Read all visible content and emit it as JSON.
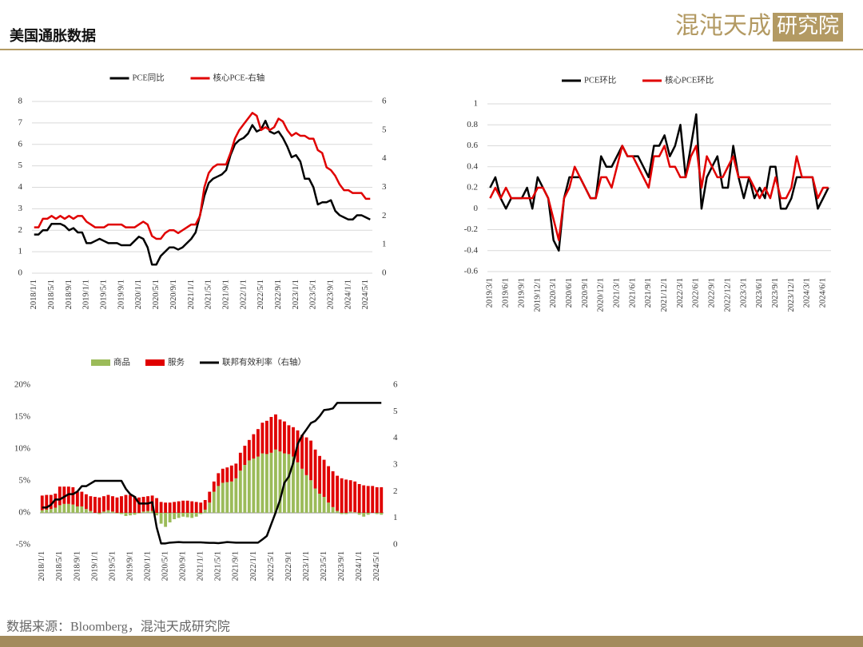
{
  "header": {
    "title": "美国通胀数据",
    "logo": "混沌天成",
    "logo_box": "研究院"
  },
  "footer": {
    "source": "数据来源：Bloomberg，混沌天成研究院"
  },
  "chart_data": [
    {
      "type": "line",
      "grid": true,
      "categories": [
        "2018/1/1",
        null,
        null,
        null,
        "2018/5/1",
        null,
        null,
        null,
        "2018/9/1",
        null,
        null,
        null,
        "2019/1/1",
        null,
        null,
        null,
        "2019/5/1",
        null,
        null,
        null,
        "2019/9/1",
        null,
        null,
        null,
        "2020/1/1",
        null,
        null,
        null,
        "2020/5/1",
        null,
        null,
        null,
        "2020/9/1",
        null,
        null,
        null,
        "2021/1/1",
        null,
        null,
        null,
        "2021/5/1",
        null,
        null,
        null,
        "2021/9/1",
        null,
        null,
        null,
        "2022/1/1",
        null,
        null,
        null,
        "2022/5/1",
        null,
        null,
        null,
        "2022/9/1",
        null,
        null,
        null,
        "2023/1/1",
        null,
        null,
        null,
        "2023/5/1",
        null,
        null,
        null,
        "2023/9/1",
        null,
        null,
        null,
        "2024/1/1",
        null,
        null,
        null,
        "2024/5/1",
        null
      ],
      "ylim": [
        0,
        8
      ],
      "yticks": [
        0,
        1,
        2,
        3,
        4,
        5,
        6,
        7,
        8
      ],
      "y2lim": [
        0,
        6
      ],
      "y2ticks": [
        0,
        1,
        2,
        3,
        4,
        5,
        6
      ],
      "series": [
        {
          "name": "PCE同比",
          "color": "#000000",
          "values": [
            1.8,
            1.8,
            2.0,
            2.0,
            2.3,
            2.3,
            2.3,
            2.2,
            2.0,
            2.1,
            1.9,
            1.9,
            1.4,
            1.4,
            1.5,
            1.6,
            1.5,
            1.4,
            1.4,
            1.4,
            1.3,
            1.3,
            1.3,
            1.5,
            1.7,
            1.6,
            1.2,
            0.4,
            0.4,
            0.8,
            1.0,
            1.2,
            1.2,
            1.1,
            1.2,
            1.4,
            1.6,
            1.9,
            2.7,
            3.6,
            4.2,
            4.4,
            4.5,
            4.6,
            4.8,
            5.5,
            6.0,
            6.2,
            6.3,
            6.5,
            6.9,
            6.6,
            6.7,
            7.1,
            6.6,
            6.5,
            6.6,
            6.3,
            5.9,
            5.4,
            5.5,
            5.2,
            4.4,
            4.4,
            4.0,
            3.2,
            3.3,
            3.3,
            3.4,
            2.9,
            2.7,
            2.6,
            2.5,
            2.5,
            2.7,
            2.7,
            2.6,
            2.5
          ]
        },
        {
          "name": "核心PCE-右轴",
          "color": "#e00000",
          "axis": "y2",
          "values": [
            1.6,
            1.6,
            1.9,
            1.9,
            2.0,
            1.9,
            2.0,
            1.9,
            2.0,
            1.9,
            2.0,
            2.0,
            1.8,
            1.7,
            1.6,
            1.6,
            1.6,
            1.7,
            1.7,
            1.7,
            1.7,
            1.6,
            1.6,
            1.6,
            1.7,
            1.8,
            1.7,
            1.3,
            1.2,
            1.2,
            1.4,
            1.5,
            1.5,
            1.4,
            1.5,
            1.6,
            1.7,
            1.7,
            2.0,
            3.0,
            3.5,
            3.7,
            3.8,
            3.8,
            3.8,
            4.2,
            4.7,
            5.0,
            5.2,
            5.4,
            5.6,
            5.5,
            5.0,
            5.1,
            5.0,
            5.1,
            5.4,
            5.3,
            5.0,
            4.8,
            4.9,
            4.8,
            4.8,
            4.7,
            4.7,
            4.3,
            4.2,
            3.7,
            3.6,
            3.4,
            3.1,
            2.9,
            2.9,
            2.8,
            2.8,
            2.8,
            2.6,
            2.6
          ]
        }
      ]
    },
    {
      "type": "line",
      "grid": true,
      "categories": [
        "2019/3/1",
        null,
        null,
        "2019/6/1",
        null,
        null,
        "2019/9/1",
        null,
        null,
        "2019/12/1",
        null,
        null,
        "2020/3/1",
        null,
        null,
        "2020/6/1",
        null,
        null,
        "2020/9/1",
        null,
        null,
        "2020/12/1",
        null,
        null,
        "2021/3/1",
        null,
        null,
        "2021/6/1",
        null,
        null,
        "2021/9/1",
        null,
        null,
        "2021/12/1",
        null,
        null,
        "2022/3/1",
        null,
        null,
        "2022/6/1",
        null,
        null,
        "2022/9/1",
        null,
        null,
        "2022/12/1",
        null,
        null,
        "2023/3/1",
        null,
        null,
        "2023/6/1",
        null,
        null,
        "2023/9/1",
        null,
        null,
        "2023/12/1",
        null,
        null,
        "2024/3/1",
        null,
        null,
        "2024/6/1",
        null
      ],
      "ylim": [
        -0.6,
        1
      ],
      "yticks": [
        -0.6,
        -0.4,
        -0.2,
        0,
        0.2,
        0.4,
        0.6,
        0.8,
        1
      ],
      "series": [
        {
          "name": "PCE环比",
          "color": "#000000",
          "values": [
            0.2,
            0.3,
            0.1,
            0.0,
            0.1,
            0.1,
            0.1,
            0.2,
            0.0,
            0.3,
            0.2,
            0.1,
            -0.3,
            -0.4,
            0.1,
            0.3,
            0.3,
            0.3,
            0.2,
            0.1,
            0.1,
            0.5,
            0.4,
            0.4,
            0.5,
            0.6,
            0.5,
            0.5,
            0.5,
            0.4,
            0.3,
            0.6,
            0.6,
            0.7,
            0.5,
            0.6,
            0.8,
            0.3,
            0.6,
            0.9,
            0.0,
            0.3,
            0.4,
            0.5,
            0.2,
            0.2,
            0.6,
            0.3,
            0.1,
            0.3,
            0.1,
            0.2,
            0.1,
            0.4,
            0.4,
            0.0,
            0.0,
            0.1,
            0.3,
            0.3,
            0.3,
            0.3,
            0.0,
            0.1,
            0.2
          ]
        },
        {
          "name": "核心PCE环比",
          "color": "#e00000",
          "values": [
            0.1,
            0.2,
            0.1,
            0.2,
            0.1,
            0.1,
            0.1,
            0.1,
            0.1,
            0.2,
            0.2,
            0.1,
            -0.1,
            -0.3,
            0.1,
            0.2,
            0.4,
            0.3,
            0.2,
            0.1,
            0.1,
            0.3,
            0.3,
            0.2,
            0.4,
            0.6,
            0.5,
            0.5,
            0.4,
            0.3,
            0.2,
            0.5,
            0.5,
            0.6,
            0.4,
            0.4,
            0.3,
            0.3,
            0.5,
            0.6,
            0.2,
            0.5,
            0.4,
            0.3,
            0.3,
            0.4,
            0.5,
            0.3,
            0.3,
            0.3,
            0.2,
            0.1,
            0.2,
            0.1,
            0.3,
            0.1,
            0.1,
            0.2,
            0.5,
            0.3,
            0.3,
            0.3,
            0.1,
            0.2,
            0.2
          ]
        }
      ]
    },
    {
      "type": "bar",
      "grid": false,
      "categories": [
        "2018/1/1",
        null,
        null,
        null,
        "2018/5/1",
        null,
        null,
        null,
        "2018/9/1",
        null,
        null,
        null,
        "2019/1/1",
        null,
        null,
        null,
        "2019/5/1",
        null,
        null,
        null,
        "2019/9/1",
        null,
        null,
        null,
        "2020/1/1",
        null,
        null,
        null,
        "2020/5/1",
        null,
        null,
        null,
        "2020/9/1",
        null,
        null,
        null,
        "2021/1/1",
        null,
        null,
        null,
        "2021/5/1",
        null,
        null,
        null,
        "2021/9/1",
        null,
        null,
        null,
        "2022/1/1",
        null,
        null,
        null,
        "2022/5/1",
        null,
        null,
        null,
        "2022/9/1",
        null,
        null,
        null,
        "2023/1/1",
        null,
        null,
        null,
        "2023/5/1",
        null,
        null,
        null,
        "2023/9/1",
        null,
        null,
        null,
        "2024/1/1",
        null,
        null,
        null,
        "2024/5/1",
        null
      ],
      "ylim": [
        -5,
        20
      ],
      "yticks": [
        {
          "value": -5,
          "label": "-5%"
        },
        {
          "value": 0,
          "label": "0%"
        },
        {
          "value": 5,
          "label": "5%"
        },
        {
          "value": 10,
          "label": "10%"
        },
        {
          "value": 15,
          "label": "15%"
        },
        {
          "value": 20,
          "label": "20%"
        }
      ],
      "y2lim": [
        0,
        6
      ],
      "y2ticks": [
        0,
        1,
        2,
        3,
        4,
        5,
        6
      ],
      "series": [
        {
          "name": "商品",
          "color": "#9bbb59",
          "values": [
            0.4,
            0.5,
            0.6,
            0.8,
            1.2,
            1.4,
            1.4,
            1.3,
            1.0,
            1.0,
            0.6,
            0.3,
            0.0,
            -0.2,
            0.2,
            0.4,
            0.2,
            -0.1,
            -0.2,
            -0.5,
            -0.4,
            -0.3,
            -0.1,
            0.2,
            0.3,
            0.3,
            -0.4,
            -1.7,
            -2.2,
            -1.5,
            -1.0,
            -0.8,
            -0.6,
            -0.7,
            -0.8,
            -0.6,
            -0.2,
            0.5,
            1.6,
            3.3,
            4.2,
            4.7,
            4.8,
            4.9,
            5.4,
            6.6,
            7.5,
            8.2,
            8.5,
            8.8,
            9.3,
            9.2,
            9.4,
            9.9,
            9.6,
            9.3,
            9.2,
            8.8,
            7.9,
            6.9,
            5.9,
            5.1,
            3.8,
            3.0,
            2.5,
            1.6,
            0.9,
            0.3,
            -0.2,
            -0.2,
            0.2,
            0.1,
            -0.3,
            -0.6,
            -0.3,
            0.0,
            -0.2,
            -0.3
          ]
        },
        {
          "name": "服务",
          "color": "#e00000",
          "values": [
            2.3,
            2.3,
            2.2,
            2.2,
            2.9,
            2.7,
            2.7,
            2.7,
            2.3,
            2.3,
            2.3,
            2.3,
            2.5,
            2.4,
            2.4,
            2.4,
            2.4,
            2.4,
            2.6,
            2.8,
            2.8,
            2.6,
            2.4,
            2.3,
            2.3,
            2.4,
            2.3,
            1.7,
            1.6,
            1.6,
            1.7,
            1.8,
            1.9,
            1.9,
            1.8,
            1.7,
            1.6,
            1.5,
            1.7,
            1.6,
            2.0,
            2.2,
            2.3,
            2.5,
            2.3,
            2.8,
            3.0,
            3.2,
            3.8,
            4.3,
            4.8,
            5.2,
            5.6,
            5.5,
            5.0,
            5.0,
            4.5,
            4.6,
            5.0,
            5.3,
            5.9,
            6.2,
            6.1,
            5.9,
            5.8,
            5.7,
            5.6,
            5.5,
            5.4,
            5.2,
            4.9,
            4.8,
            4.5,
            4.3,
            4.2,
            4.2,
            4.0,
            4.0
          ]
        },
        {
          "name": "联邦有效利率（右轴）",
          "color": "#000000",
          "type": "line",
          "axis": "y2",
          "values": [
            1.4,
            1.4,
            1.5,
            1.7,
            1.7,
            1.8,
            1.9,
            1.9,
            2.0,
            2.2,
            2.2,
            2.3,
            2.4,
            2.4,
            2.4,
            2.4,
            2.4,
            2.4,
            2.4,
            2.1,
            1.9,
            1.8,
            1.55,
            1.55,
            1.55,
            1.6,
            0.65,
            0.05,
            0.05,
            0.08,
            0.09,
            0.1,
            0.09,
            0.09,
            0.09,
            0.09,
            0.09,
            0.08,
            0.07,
            0.07,
            0.06,
            0.08,
            0.1,
            0.09,
            0.08,
            0.08,
            0.08,
            0.08,
            0.08,
            0.08,
            0.2,
            0.33,
            0.77,
            1.21,
            1.68,
            2.33,
            2.56,
            3.08,
            3.78,
            4.1,
            4.33,
            4.57,
            4.65,
            4.83,
            5.06,
            5.08,
            5.12,
            5.33,
            5.33,
            5.33,
            5.33,
            5.33,
            5.33,
            5.33,
            5.33,
            5.33,
            5.33,
            5.33
          ]
        }
      ]
    }
  ]
}
